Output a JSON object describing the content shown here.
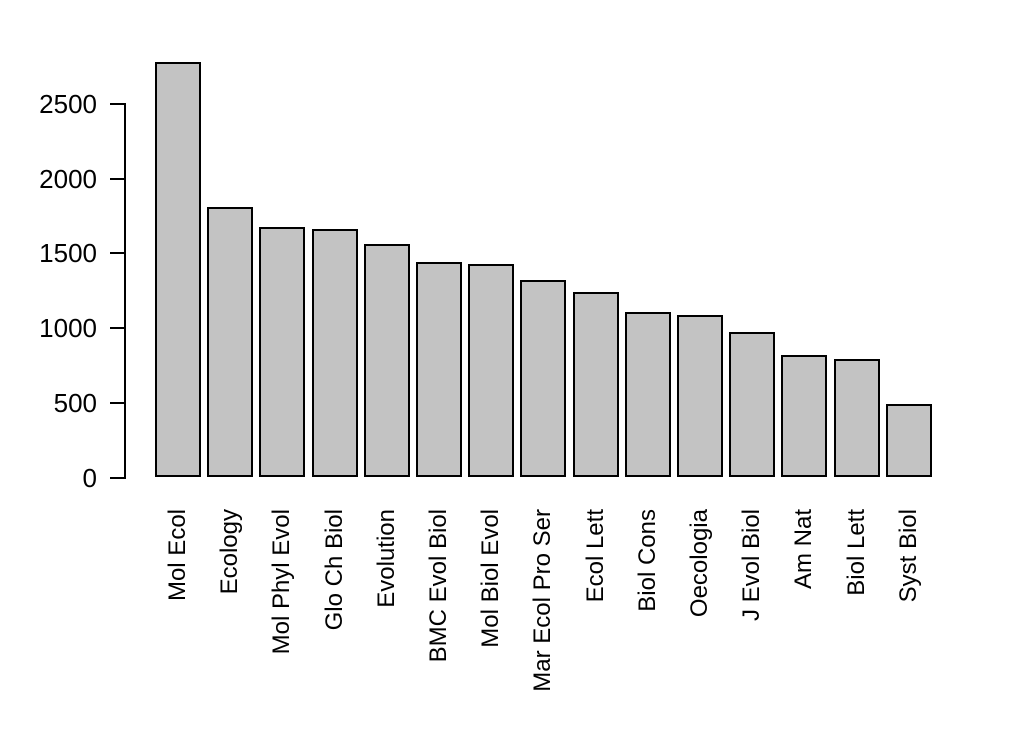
{
  "chart_data": {
    "type": "bar",
    "title": "",
    "xlabel": "",
    "ylabel": "",
    "categories": [
      "Mol Ecol",
      "Ecology",
      "Mol Phyl Evol",
      "Glo Ch Biol",
      "Evolution",
      "BMC Evol Biol",
      "Mol Biol Evol",
      "Mar Ecol Pro Ser",
      "Ecol Lett",
      "Biol Cons",
      "Oecologia",
      "J Evol Biol",
      "Am Nat",
      "Biol Lett",
      "Syst Biol"
    ],
    "values": [
      2780,
      1810,
      1680,
      1665,
      1560,
      1445,
      1430,
      1320,
      1240,
      1105,
      1085,
      975,
      820,
      790,
      495
    ],
    "ylim": [
      0,
      2500
    ],
    "yticks": [
      0,
      500,
      1000,
      1500,
      2000,
      2500
    ],
    "grid": false,
    "legend": null,
    "bar_fill": "#c3c3c3",
    "bar_border": "#000000",
    "axis_color": "#000000",
    "background": "#ffffff"
  }
}
